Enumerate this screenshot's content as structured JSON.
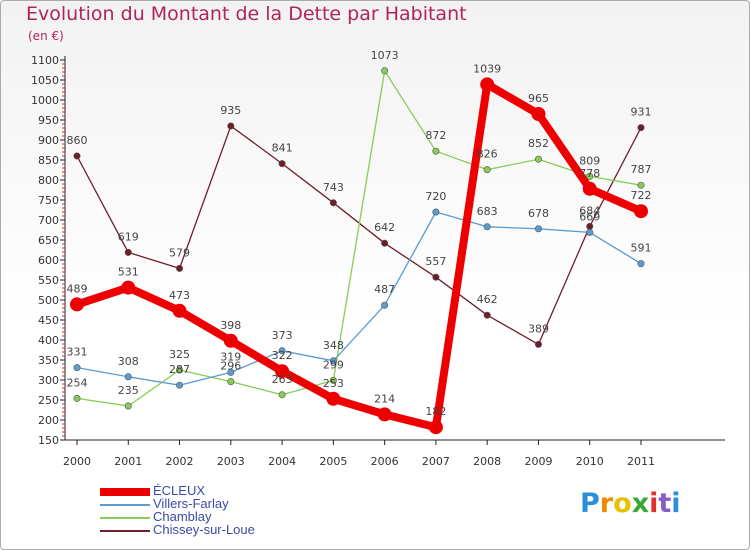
{
  "chart_data": {
    "type": "line",
    "title": "Evolution du Montant de la Dette par Habitant",
    "subtitle": "(en €)",
    "xlabel": "",
    "ylabel": "",
    "x": [
      "2000",
      "2001",
      "2002",
      "2003",
      "2004",
      "2005",
      "2006",
      "2007",
      "2008",
      "2009",
      "2010",
      "2011"
    ],
    "ylim": [
      150,
      1100
    ],
    "yticks": [
      150,
      200,
      250,
      300,
      350,
      400,
      450,
      500,
      550,
      600,
      650,
      700,
      750,
      800,
      850,
      900,
      950,
      1000,
      1050,
      1100
    ],
    "grid": false,
    "legend": "bottom-left",
    "series": [
      {
        "name": "Chissey-sur-Loue",
        "color": "#6e1e2a",
        "values": [
          860,
          619,
          579,
          935,
          841,
          743,
          642,
          557,
          462,
          389,
          684,
          931
        ]
      },
      {
        "name": "Chamblay",
        "color": "#88cc55",
        "values": [
          254,
          235,
          325,
          296,
          263,
          299,
          1073,
          872,
          826,
          852,
          809,
          787
        ]
      },
      {
        "name": "Villers-Farlay",
        "color": "#5a9bd0",
        "values": [
          331,
          308,
          287,
          319,
          373,
          348,
          487,
          720,
          683,
          678,
          669,
          591
        ]
      },
      {
        "name": "ÉCLEUX",
        "color": "#ee0000",
        "values": [
          489,
          531,
          473,
          398,
          322,
          253,
          214,
          182,
          1039,
          965,
          778,
          722
        ]
      }
    ],
    "legend_order": [
      "ÉCLEUX",
      "Villers-Farlay",
      "Chamblay",
      "Chissey-sur-Loue"
    ]
  },
  "legend": [
    {
      "label": "ÉCLEUX",
      "color": "#ee0000"
    },
    {
      "label": "Villers-Farlay",
      "color": "#5a9bd0"
    },
    {
      "label": "Chamblay",
      "color": "#88cc55"
    },
    {
      "label": "Chissey-sur-Loue",
      "color": "#6e1e2a"
    }
  ],
  "logo": {
    "letters": [
      "P",
      "r",
      "o",
      "x",
      "i",
      "t",
      "i"
    ],
    "colors": [
      "#2a8fd8",
      "#f08a00",
      "#e8c000",
      "#3aa835",
      "#e03030",
      "#8a5cc8",
      "#2a8fd8"
    ]
  }
}
